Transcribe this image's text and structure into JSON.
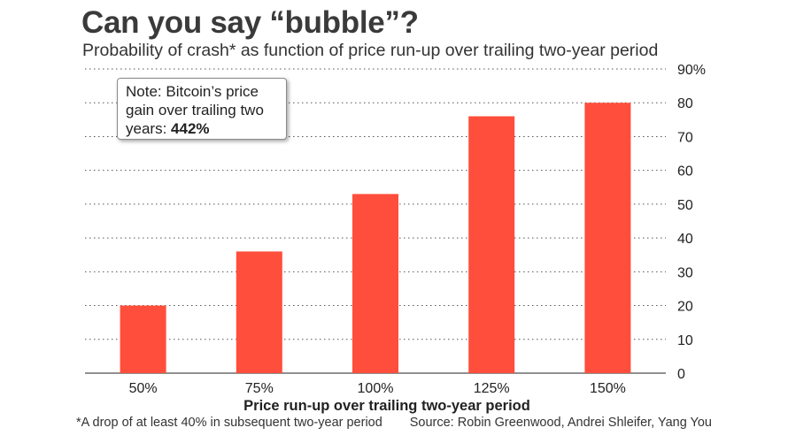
{
  "colors": {
    "bar": "#ff4e3b",
    "grid": "#555555",
    "text": "#222222"
  },
  "note": {
    "text": "Note: Bitcoin’s price gain over trailing two years:",
    "value": "442%"
  },
  "footnote": "*A drop of at least 40% in subsequent two-year period",
  "source": "Source: Robin Greenwood, Andrei Shleifer, Yang You",
  "chart_data": {
    "type": "bar",
    "title": "Can you say “bubble”?",
    "subtitle": "Probability of crash* as function of price run-up over trailing two-year period",
    "xlabel": "Price run-up over trailing two-year period",
    "ylabel": "",
    "categories": [
      "50%",
      "75%",
      "100%",
      "125%",
      "150%"
    ],
    "values": [
      20,
      36,
      53,
      76,
      80
    ],
    "ylim": [
      0,
      90
    ],
    "yticks": [
      0,
      10,
      20,
      30,
      40,
      50,
      60,
      70,
      80,
      90
    ],
    "ytick_labels": [
      "0",
      "10",
      "20",
      "30",
      "40",
      "50",
      "60",
      "70",
      "80",
      "90%"
    ],
    "grid": true,
    "y_axis_side": "right"
  }
}
